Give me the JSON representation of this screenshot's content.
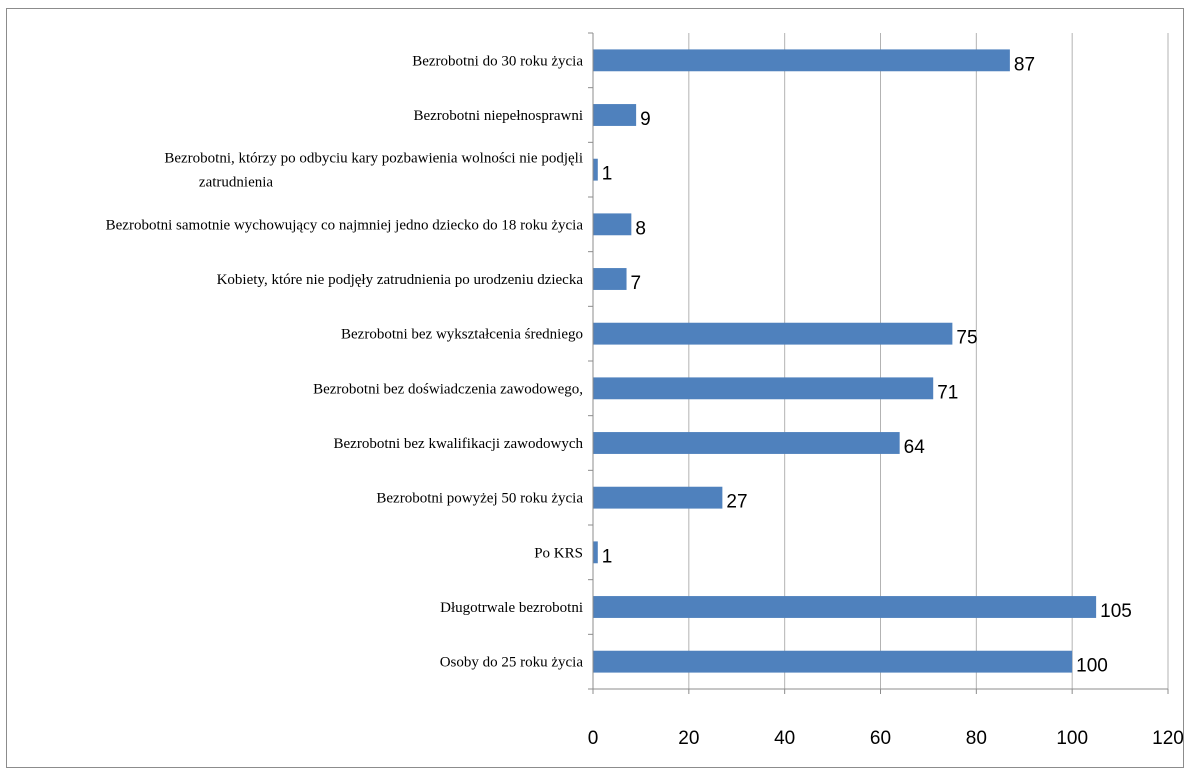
{
  "chart_data": {
    "type": "bar",
    "orientation": "horizontal",
    "title": "",
    "xlabel": "",
    "ylabel": "",
    "xlim": [
      0,
      120
    ],
    "x_ticks": [
      0,
      20,
      40,
      60,
      80,
      100,
      120
    ],
    "grid": "vertical",
    "legend": "none",
    "bar_color": "#4f81bd",
    "categories": [
      [
        "Bezrobotni do 30 roku życia"
      ],
      [
        "Bezrobotni niepełnosprawni"
      ],
      [
        "Bezrobotni, którzy po odbyciu kary pozbawienia wolności nie podjęli",
        "zatrudnienia"
      ],
      [
        "Bezrobotni samotnie wychowujący co najmniej jedno dziecko do 18 roku życia"
      ],
      [
        "Kobiety, które nie podjęły zatrudnienia po urodzeniu dziecka"
      ],
      [
        "Bezrobotni bez wykształcenia średniego"
      ],
      [
        "Bezrobotni bez doświadczenia zawodowego,"
      ],
      [
        "Bezrobotni bez kwalifikacji zawodowych"
      ],
      [
        "Bezrobotni powyżej 50 roku życia"
      ],
      [
        "Po KRS"
      ],
      [
        "Długotrwale bezrobotni"
      ],
      [
        "Osoby do 25 roku życia"
      ]
    ],
    "values": [
      87,
      9,
      1,
      8,
      7,
      75,
      71,
      64,
      27,
      1,
      105,
      100
    ]
  }
}
